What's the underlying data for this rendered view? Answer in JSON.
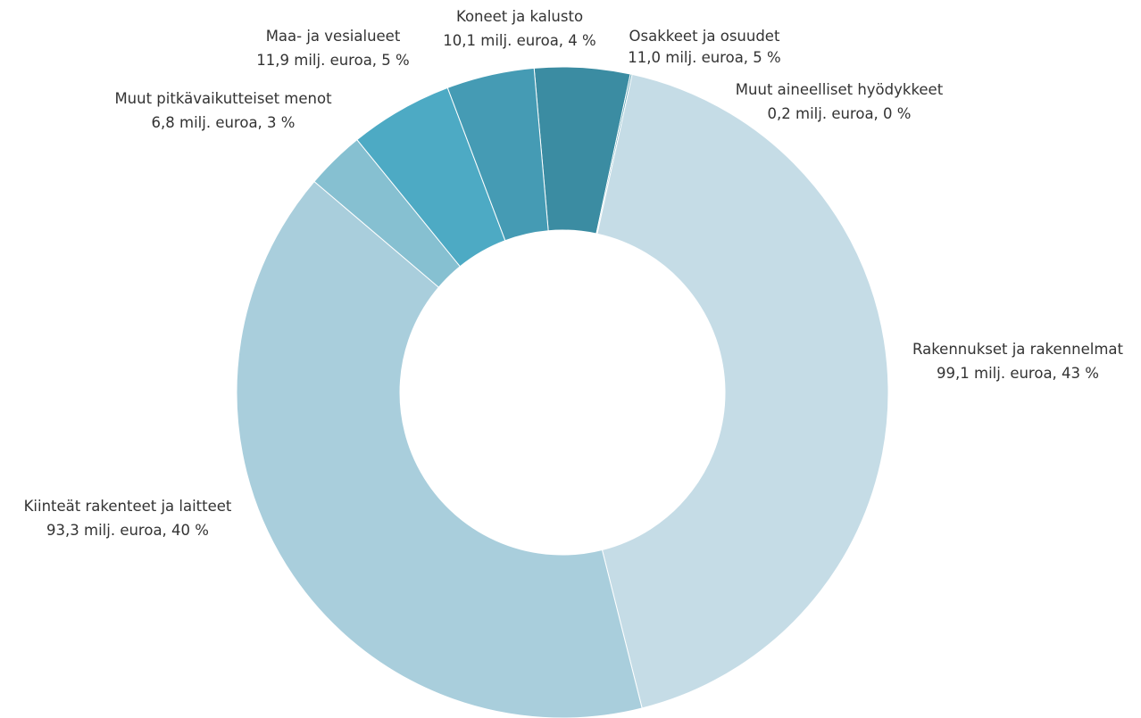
{
  "chart_data": {
    "type": "pie",
    "donut": true,
    "title": "",
    "unit": "milj. euroa",
    "slices": [
      {
        "name": "Osakkeet ja osuudet",
        "value": 11.0,
        "value_label": "11,0 milj. euroa, 5 %",
        "percent": 5,
        "color": "#3b8ca2"
      },
      {
        "name": "Muut aineelliset hyödykkeet",
        "value": 0.2,
        "value_label": "0,2 milj. euroa, 0 %",
        "percent": 0,
        "color": "#5aa2b4"
      },
      {
        "name": "Rakennukset ja rakennelmat",
        "value": 99.1,
        "value_label": "99,1 milj. euroa, 43 %",
        "percent": 43,
        "color": "#c5dce6"
      },
      {
        "name": "Kiinteät rakenteet ja laitteet",
        "value": 93.3,
        "value_label": "93,3 milj. euroa, 40 %",
        "percent": 40,
        "color": "#a9cedc"
      },
      {
        "name": "Muut pitkävaikutteiset menot",
        "value": 6.8,
        "value_label": "6,8 milj. euroa, 3 %",
        "percent": 3,
        "color": "#86c0d1"
      },
      {
        "name": "Maa- ja vesialueet",
        "value": 11.9,
        "value_label": "11,9 milj. euroa, 5 %",
        "percent": 5,
        "color": "#4daac4"
      },
      {
        "name": "Koneet ja kalusto",
        "value": 10.1,
        "value_label": "10,1 milj. euroa, 4 %",
        "percent": 4,
        "color": "#459bb4"
      }
    ]
  }
}
